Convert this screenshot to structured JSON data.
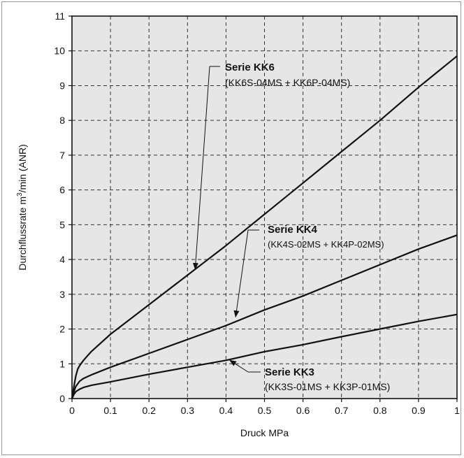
{
  "chart_data": {
    "type": "line",
    "title": "",
    "xlabel": "Druck MPa",
    "ylabel_main": "Durchflussrate m",
    "ylabel_sup": "3",
    "ylabel_tail": "/min (ANR)",
    "xlim": [
      0,
      1
    ],
    "ylim": [
      0,
      11
    ],
    "grid": true,
    "x_ticks": [
      "0",
      "0.1",
      "0.2",
      "0.3",
      "0.4",
      "0.5",
      "0.6",
      "0.7",
      "0.8",
      "0.9",
      "1"
    ],
    "y_ticks": [
      "0",
      "1",
      "2",
      "3",
      "4",
      "5",
      "6",
      "7",
      "8",
      "9",
      "10",
      "11"
    ],
    "series": [
      {
        "name": "Serie KK6",
        "detail": "(KK6S-04MS + KK6P-04MS)",
        "x": [
          0,
          0.005,
          0.01,
          0.015,
          0.02,
          0.03,
          0.05,
          0.1,
          0.2,
          0.3,
          0.4,
          0.5,
          0.6,
          0.7,
          0.8,
          0.9,
          1.0
        ],
        "y": [
          0,
          0.35,
          0.65,
          0.85,
          0.95,
          1.1,
          1.35,
          1.85,
          2.7,
          3.55,
          4.4,
          5.3,
          6.2,
          7.1,
          8.0,
          8.95,
          9.85
        ]
      },
      {
        "name": "Serie KK4",
        "detail": "(KK4S-02MS + KK4P-02MS)",
        "x": [
          0,
          0.005,
          0.01,
          0.02,
          0.03,
          0.05,
          0.1,
          0.2,
          0.3,
          0.4,
          0.5,
          0.6,
          0.7,
          0.8,
          0.9,
          1.0
        ],
        "y": [
          0,
          0.2,
          0.35,
          0.5,
          0.58,
          0.68,
          0.9,
          1.3,
          1.7,
          2.1,
          2.55,
          2.95,
          3.4,
          3.85,
          4.3,
          4.7
        ]
      },
      {
        "name": "Serie KK3",
        "detail": "(KK3S-01MS + KK3P-01MS)",
        "x": [
          0,
          0.005,
          0.01,
          0.02,
          0.03,
          0.05,
          0.1,
          0.2,
          0.3,
          0.4,
          0.5,
          0.6,
          0.7,
          0.8,
          0.9,
          1.0
        ],
        "y": [
          0,
          0.12,
          0.2,
          0.27,
          0.32,
          0.38,
          0.48,
          0.7,
          0.9,
          1.1,
          1.35,
          1.55,
          1.78,
          2.0,
          2.22,
          2.42
        ]
      }
    ],
    "colors": {
      "line": "#111111",
      "plot_bg": "#e6e6e6",
      "grid": "#333333"
    }
  }
}
